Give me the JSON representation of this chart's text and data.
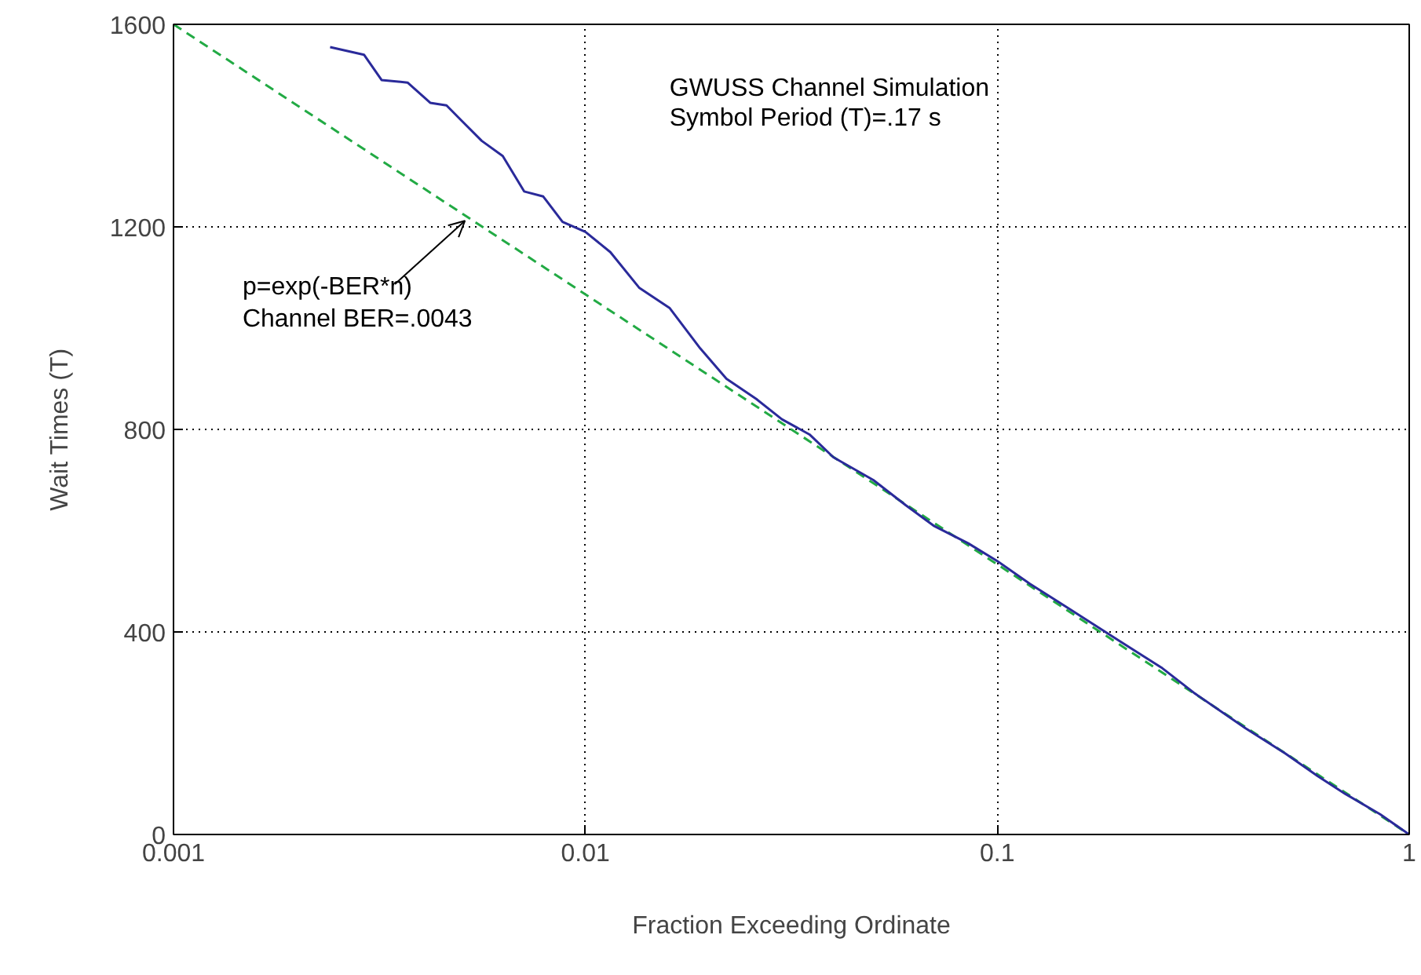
{
  "chart_data": {
    "type": "line",
    "xlabel": "Fraction Exceeding Ordinate",
    "ylabel": "Wait Times (T)",
    "log": "x",
    "grid": true,
    "xlim": [
      0.001,
      1
    ],
    "ylim": [
      0,
      1600
    ],
    "xticks": [
      {
        "value": 0.001,
        "label": "0.001"
      },
      {
        "value": 0.01,
        "label": "0.01"
      },
      {
        "value": 0.1,
        "label": "0.1"
      },
      {
        "value": 1,
        "label": "1"
      }
    ],
    "yticks": [
      0,
      400,
      800,
      1200,
      1600
    ],
    "series": [
      {
        "color": "#22aa44",
        "line_style": "dashed",
        "x": [
          0.001,
          1
        ],
        "values": [
          1600,
          0
        ]
      },
      {
        "color": "#2a2a9a",
        "line_style": "solid",
        "x": [
          0.0024,
          0.0029,
          0.0032,
          0.0037,
          0.0042,
          0.0046,
          0.005,
          0.0056,
          0.0063,
          0.0071,
          0.0079,
          0.0088,
          0.01,
          0.0115,
          0.0135,
          0.016,
          0.019,
          0.022,
          0.026,
          0.03,
          0.035,
          0.04,
          0.05,
          0.06,
          0.07,
          0.085,
          0.1,
          0.12,
          0.15,
          0.2,
          0.25,
          0.3,
          0.4,
          0.5,
          0.6,
          0.7,
          0.85,
          1
        ],
        "values": [
          1555,
          1540,
          1490,
          1485,
          1445,
          1440,
          1410,
          1370,
          1340,
          1270,
          1260,
          1210,
          1190,
          1150,
          1080,
          1040,
          960,
          900,
          860,
          820,
          790,
          745,
          700,
          650,
          610,
          575,
          540,
          495,
          445,
          380,
          330,
          280,
          210,
          160,
          115,
          80,
          40,
          0
        ]
      }
    ],
    "annotations": [
      "GWUSS Channel Simulation",
      "Symbol Period (T)=.17  s",
      {
        "text": "p=exp(-BER*n)\n Channel BER=.0043",
        "x": 0.0051,
        "y": 1212
      }
    ]
  }
}
